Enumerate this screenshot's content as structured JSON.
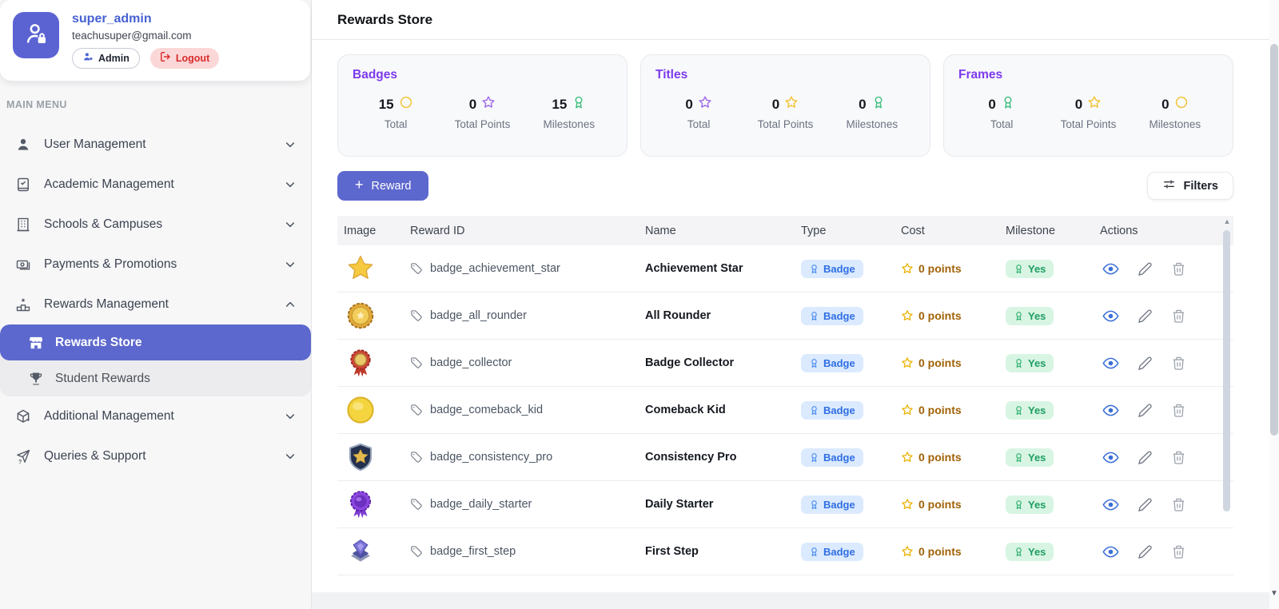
{
  "profile": {
    "name": "super_admin",
    "email": "teachusuper@gmail.com",
    "admin_label": "Admin",
    "logout_label": "Logout"
  },
  "sidebar": {
    "section_label": "MAIN MENU",
    "menu": [
      {
        "label": "User Management",
        "icon": "user",
        "chevron": "down"
      },
      {
        "label": "Academic Management",
        "icon": "book",
        "chevron": "down"
      },
      {
        "label": "Schools & Campuses",
        "icon": "building",
        "chevron": "down"
      },
      {
        "label": "Payments & Promotions",
        "icon": "payments",
        "chevron": "down"
      },
      {
        "label": "Rewards Management",
        "icon": "rewards",
        "chevron": "up"
      }
    ],
    "submenu": [
      {
        "label": "Rewards Store",
        "icon": "store",
        "active": true
      },
      {
        "label": "Student Rewards",
        "icon": "trophy",
        "active": false
      }
    ],
    "menu_tail": [
      {
        "label": "Additional Management",
        "icon": "box",
        "chevron": "down"
      },
      {
        "label": "Queries & Support",
        "icon": "support",
        "chevron": "down"
      }
    ]
  },
  "header": {
    "title": "Rewards Store"
  },
  "stats_cards": [
    {
      "title": "Badges",
      "stats": [
        {
          "value": "15",
          "icon": "seal-yellow",
          "label": "Total"
        },
        {
          "value": "0",
          "icon": "star-purple",
          "label": "Total Points"
        },
        {
          "value": "15",
          "icon": "ribbon-green",
          "label": "Milestones"
        }
      ]
    },
    {
      "title": "Titles",
      "stats": [
        {
          "value": "0",
          "icon": "star-purple",
          "label": "Total"
        },
        {
          "value": "0",
          "icon": "star-yellow",
          "label": "Total Points"
        },
        {
          "value": "0",
          "icon": "ribbon-green",
          "label": "Milestones"
        }
      ]
    },
    {
      "title": "Frames",
      "stats": [
        {
          "value": "0",
          "icon": "ribbon-green",
          "label": "Total"
        },
        {
          "value": "0",
          "icon": "star-yellow",
          "label": "Total Points"
        },
        {
          "value": "0",
          "icon": "seal-yellow",
          "label": "Milestones"
        }
      ]
    }
  ],
  "toolbar": {
    "add_button": "Reward",
    "filters_button": "Filters"
  },
  "table": {
    "columns": [
      "Image",
      "Reward ID",
      "Name",
      "Type",
      "Cost",
      "Milestone",
      "Actions"
    ],
    "rows": [
      {
        "image": "star-gold",
        "reward_id": "badge_achievement_star",
        "name": "Achievement Star",
        "type": "Badge",
        "cost": "0 points",
        "milestone": "Yes"
      },
      {
        "image": "medal-gold",
        "reward_id": "badge_all_rounder",
        "name": "All Rounder",
        "type": "Badge",
        "cost": "0 points",
        "milestone": "Yes"
      },
      {
        "image": "rosette-red",
        "reward_id": "badge_collector",
        "name": "Badge Collector",
        "type": "Badge",
        "cost": "0 points",
        "milestone": "Yes"
      },
      {
        "image": "coin-yellow",
        "reward_id": "badge_comeback_kid",
        "name": "Comeback Kid",
        "type": "Badge",
        "cost": "0 points",
        "milestone": "Yes"
      },
      {
        "image": "shield-star",
        "reward_id": "badge_consistency_pro",
        "name": "Consistency Pro",
        "type": "Badge",
        "cost": "0 points",
        "milestone": "Yes"
      },
      {
        "image": "rosette-purple",
        "reward_id": "badge_daily_starter",
        "name": "Daily Starter",
        "type": "Badge",
        "cost": "0 points",
        "milestone": "Yes"
      },
      {
        "image": "emblem-purple",
        "reward_id": "badge_first_step",
        "name": "First Step",
        "type": "Badge",
        "cost": "0 points",
        "milestone": "Yes"
      }
    ]
  },
  "colors": {
    "accent_indigo": "#5d68ce",
    "title_purple": "#7c3aed",
    "type_pill_bg": "#dbeafe",
    "type_pill_text": "#2f6fe4",
    "milestone_pill_bg": "#d8f5e3",
    "milestone_pill_text": "#1e9e62",
    "cost_text": "#a16207",
    "logout_bg": "#fbd7d7",
    "logout_text": "#d92b2b",
    "star_yellow": "#f2c335",
    "star_purple": "#a06ae8",
    "ribbon_green": "#3fbf7f"
  }
}
